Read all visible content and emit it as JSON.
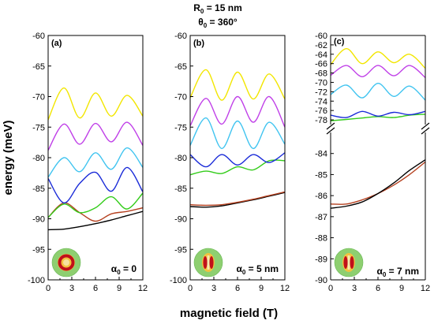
{
  "figure": {
    "header_line1_main": "R",
    "header_line1_sub": "0",
    "header_line1_rest": " = 15 nm",
    "header_line2_main": "θ",
    "header_line2_sub": "0",
    "header_line2_rest": " = 360°",
    "xlabel": "magnetic field (T)",
    "ylabel": "energy (meV)"
  },
  "chart_data": [
    {
      "type": "line",
      "panel_label": "(a)",
      "annotation": {
        "main": "α",
        "sub": "0",
        "rest": " = 0"
      },
      "xlim": [
        0,
        12
      ],
      "ylim": [
        -100,
        -60
      ],
      "xticks": [
        0,
        3,
        6,
        9,
        12
      ],
      "yticks": [
        -100,
        -95,
        -90,
        -85,
        -80,
        -75,
        -70,
        -65,
        -60
      ],
      "x": [
        0,
        2,
        4,
        6,
        8,
        10,
        12
      ],
      "series": [
        {
          "color": "#000000",
          "values": [
            -91.8,
            -91.7,
            -91.3,
            -90.8,
            -90.2,
            -89.5,
            -88.8
          ]
        },
        {
          "color": "#b5401f",
          "values": [
            -89.8,
            -87.4,
            -89.0,
            -90.4,
            -89.2,
            -88.8,
            -88.2
          ]
        },
        {
          "color": "#33cc1a",
          "values": [
            -89.8,
            -87.6,
            -89.0,
            -88.2,
            -86.4,
            -88.4,
            -85.8
          ]
        },
        {
          "color": "#1a2bd8",
          "values": [
            -83.4,
            -87.4,
            -84.2,
            -82.4,
            -85.5,
            -81.6,
            -85.6
          ]
        },
        {
          "color": "#40c4f0",
          "values": [
            -83.2,
            -80.0,
            -82.3,
            -79.2,
            -81.9,
            -78.4,
            -81.6
          ]
        },
        {
          "color": "#c040e8",
          "values": [
            -78.8,
            -74.5,
            -77.8,
            -74.4,
            -77.4,
            -74.2,
            -78.0
          ]
        },
        {
          "color": "#f2e600",
          "values": [
            -73.8,
            -68.6,
            -73.5,
            -69.4,
            -73.2,
            -69.8,
            -73.2
          ]
        }
      ]
    },
    {
      "type": "line",
      "panel_label": "(b)",
      "annotation": {
        "main": "α",
        "sub": "0",
        "rest": " = 5 nm"
      },
      "xlim": [
        0,
        12
      ],
      "ylim": [
        -100,
        -60
      ],
      "xticks": [
        0,
        3,
        6,
        9,
        12
      ],
      "yticks": [
        -100,
        -95,
        -90,
        -85,
        -80,
        -75,
        -70,
        -65,
        -60
      ],
      "x": [
        0,
        2,
        4,
        6,
        8,
        10,
        12
      ],
      "series": [
        {
          "color": "#000000",
          "values": [
            -88.0,
            -88.1,
            -87.9,
            -87.4,
            -86.9,
            -86.3,
            -85.7
          ]
        },
        {
          "color": "#b5401f",
          "values": [
            -87.7,
            -87.8,
            -87.7,
            -87.3,
            -86.8,
            -86.2,
            -85.6
          ]
        },
        {
          "color": "#33cc1a",
          "values": [
            -82.8,
            -82.2,
            -82.6,
            -81.5,
            -82.0,
            -80.5,
            -80.5
          ]
        },
        {
          "color": "#1a2bd8",
          "values": [
            -79.5,
            -81.5,
            -79.5,
            -81.2,
            -79.5,
            -80.8,
            -79.2
          ]
        },
        {
          "color": "#40c4f0",
          "values": [
            -78.0,
            -73.5,
            -78.5,
            -74.0,
            -78.5,
            -74.2,
            -77.8
          ]
        },
        {
          "color": "#c040e8",
          "values": [
            -74.8,
            -70.3,
            -74.5,
            -70.0,
            -74.2,
            -70.0,
            -75.0
          ]
        },
        {
          "color": "#f2e600",
          "values": [
            -70.2,
            -65.6,
            -70.6,
            -66.0,
            -70.4,
            -66.3,
            -70.4
          ]
        }
      ]
    },
    {
      "type": "line",
      "panel_label": "(c)",
      "annotation": {
        "main": "α",
        "sub": "0",
        "rest": " = 7 nm"
      },
      "xlim": [
        0,
        12
      ],
      "upper_ylim": [
        -79,
        -60
      ],
      "upper_yticks": [
        -78,
        -76,
        -74,
        -72,
        -70,
        -68,
        -66,
        -64,
        -62,
        -60
      ],
      "lower_ylim": [
        -90,
        -83
      ],
      "lower_yticks": [
        -90,
        -89,
        -88,
        -87,
        -86,
        -85,
        -84
      ],
      "xticks": [
        0,
        3,
        6,
        9,
        12
      ],
      "upper_x": [
        0,
        2,
        4,
        6,
        8,
        10,
        12
      ],
      "upper_series": [
        {
          "color": "#33cc1a",
          "values": [
            -78.2,
            -77.9,
            -77.6,
            -77.3,
            -77.5,
            -77.0,
            -76.8
          ]
        },
        {
          "color": "#1a2bd8",
          "values": [
            -77.0,
            -77.5,
            -76.2,
            -77.2,
            -76.4,
            -76.9,
            -76.2
          ]
        },
        {
          "color": "#40c4f0",
          "values": [
            -72.6,
            -70.6,
            -73.3,
            -70.2,
            -73.0,
            -70.8,
            -73.8
          ]
        },
        {
          "color": "#c040e8",
          "values": [
            -68.5,
            -66.4,
            -68.8,
            -66.4,
            -68.6,
            -66.4,
            -69.0
          ]
        },
        {
          "color": "#f2e600",
          "values": [
            -66.2,
            -62.8,
            -66.0,
            -63.5,
            -65.8,
            -64.0,
            -67.0
          ]
        }
      ],
      "lower_x": [
        0,
        2,
        4,
        6,
        8,
        10,
        12
      ],
      "lower_series": [
        {
          "color": "#b5401f",
          "values": [
            -86.4,
            -86.4,
            -86.2,
            -85.9,
            -85.5,
            -85.0,
            -84.4
          ]
        },
        {
          "color": "#000000",
          "values": [
            -86.6,
            -86.5,
            -86.3,
            -85.9,
            -85.4,
            -84.8,
            -84.3
          ]
        }
      ]
    }
  ]
}
